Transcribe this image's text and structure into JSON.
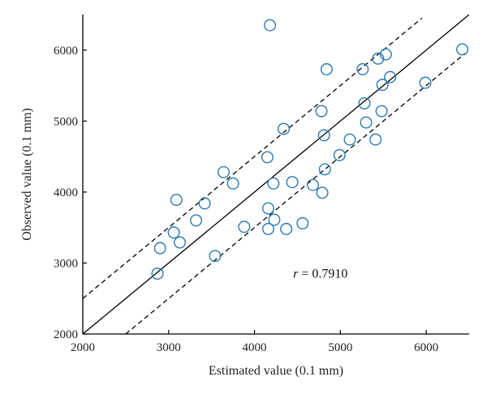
{
  "chart_data": {
    "type": "scatter",
    "title": "",
    "xlabel": "Estimated value (0.1 mm)",
    "ylabel": "Observed value (0.1 mm)",
    "xlim": [
      2000,
      6500
    ],
    "ylim": [
      2000,
      6500
    ],
    "xticks": [
      2000,
      3000,
      4000,
      5000,
      6000
    ],
    "yticks": [
      2000,
      3000,
      4000,
      5000,
      6000
    ],
    "grid": false,
    "marker": "open-circle",
    "marker_color": "#2a7bb5",
    "line_color": "#000000",
    "annotation": {
      "symbol": "r",
      "text": " = 0.7910",
      "at": [
        4450,
        2850
      ]
    },
    "lines": [
      {
        "style": "solid",
        "points": [
          [
            2000,
            2000
          ],
          [
            6500,
            6500
          ]
        ]
      },
      {
        "style": "dashed",
        "points": [
          [
            2000,
            2500
          ],
          [
            5950,
            6450
          ]
        ]
      },
      {
        "style": "dashed",
        "points": [
          [
            2500,
            2000
          ],
          [
            6450,
            5950
          ]
        ]
      }
    ],
    "points": [
      {
        "x": 4180,
        "y": 6350
      },
      {
        "x": 2870,
        "y": 2850
      },
      {
        "x": 2900,
        "y": 3210
      },
      {
        "x": 3060,
        "y": 3430
      },
      {
        "x": 3090,
        "y": 3890
      },
      {
        "x": 3130,
        "y": 3290
      },
      {
        "x": 3320,
        "y": 3600
      },
      {
        "x": 3420,
        "y": 3840
      },
      {
        "x": 3540,
        "y": 3100
      },
      {
        "x": 3640,
        "y": 4280
      },
      {
        "x": 3750,
        "y": 4120
      },
      {
        "x": 3880,
        "y": 3510
      },
      {
        "x": 4150,
        "y": 4490
      },
      {
        "x": 4160,
        "y": 3770
      },
      {
        "x": 4160,
        "y": 3480
      },
      {
        "x": 4220,
        "y": 4120
      },
      {
        "x": 4230,
        "y": 3610
      },
      {
        "x": 4340,
        "y": 4890
      },
      {
        "x": 4370,
        "y": 3480
      },
      {
        "x": 4440,
        "y": 4140
      },
      {
        "x": 4560,
        "y": 3560
      },
      {
        "x": 4680,
        "y": 4100
      },
      {
        "x": 4780,
        "y": 5140
      },
      {
        "x": 4790,
        "y": 3990
      },
      {
        "x": 4810,
        "y": 4800
      },
      {
        "x": 4820,
        "y": 4320
      },
      {
        "x": 4840,
        "y": 5730
      },
      {
        "x": 4990,
        "y": 4520
      },
      {
        "x": 5110,
        "y": 4740
      },
      {
        "x": 5260,
        "y": 5730
      },
      {
        "x": 5280,
        "y": 5250
      },
      {
        "x": 5300,
        "y": 4980
      },
      {
        "x": 5410,
        "y": 4740
      },
      {
        "x": 5440,
        "y": 5880
      },
      {
        "x": 5480,
        "y": 5140
      },
      {
        "x": 5490,
        "y": 5510
      },
      {
        "x": 5530,
        "y": 5940
      },
      {
        "x": 5580,
        "y": 5620
      },
      {
        "x": 5990,
        "y": 5540
      },
      {
        "x": 6420,
        "y": 6010
      }
    ]
  }
}
